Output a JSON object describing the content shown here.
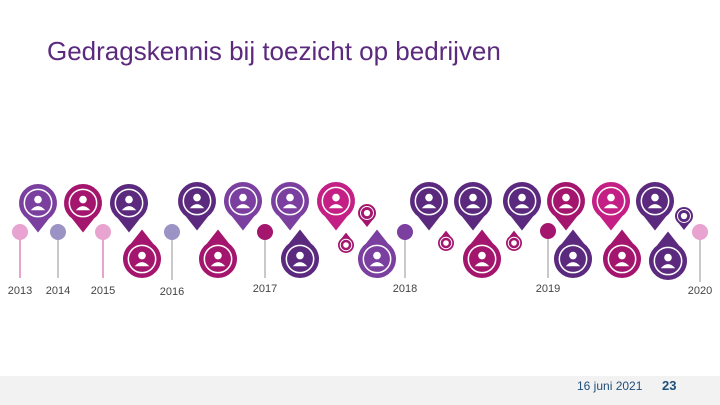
{
  "title": "Gedragskennis bij toezicht op bedrijven",
  "colors": {
    "purple_dark": "#5b2a7e",
    "purple_medium": "#7b3fa0",
    "magenta": "#a4166e",
    "magenta_light": "#c41f84",
    "pink_light": "#e9a3d0",
    "lavender": "#9a93c4",
    "grey_line": "#c9c9c9"
  },
  "timeline": {
    "years": [
      "2013",
      "2014",
      "2015",
      "2016",
      "2017",
      "2018",
      "2019",
      "2020"
    ],
    "milestone_icons": [
      "power-icon",
      "people-icon",
      "org-chart-icon",
      "person-icon",
      "book-icon",
      "hierarchy-icon",
      "envelope-icon",
      "small-icon",
      "person-icon",
      "signpost-icon",
      "map-icon",
      "gavel-icon",
      "person-icon",
      "clipboard-icon",
      "info-icon",
      "tools-icon",
      "person-icon",
      "graduate-icon",
      "small-icon",
      "gear-person-icon",
      "small-icon",
      "document-icon",
      "small-icon",
      "people-icon",
      "graduation-cap-icon",
      "globe-icon"
    ]
  },
  "footer": {
    "date": "16 juni 2021",
    "page_number": "23"
  }
}
